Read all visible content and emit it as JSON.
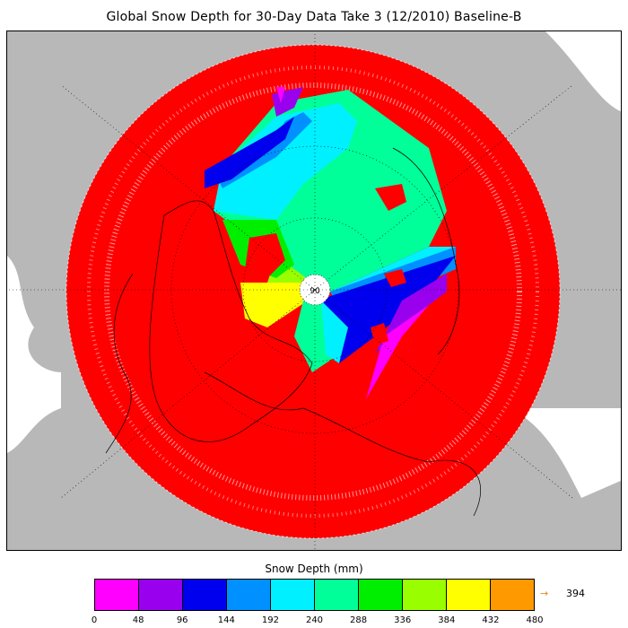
{
  "title": "Global Snow Depth for 30-Day Data Take 3 (12/2010) Baseline-B",
  "map": {
    "projection": "north polar stereographic",
    "background_land_color": "#b8b8b8",
    "water_color": "#ffffff",
    "pole_label": "90",
    "dominant_color": "#ff0000"
  },
  "legend": {
    "title": "Snow Depth (mm)",
    "ticks": [
      "0",
      "48",
      "96",
      "144",
      "192",
      "240",
      "288",
      "336",
      "384",
      "432",
      "480"
    ],
    "colors": [
      "#ff00ff",
      "#9900ee",
      "#0000ee",
      "#0090ff",
      "#00f0ff",
      "#00ff99",
      "#00ee00",
      "#99ff00",
      "#ffff00",
      "#ff9900"
    ],
    "max_arrow": "→",
    "max_value": "394",
    "max_color": "#e08a1e"
  }
}
